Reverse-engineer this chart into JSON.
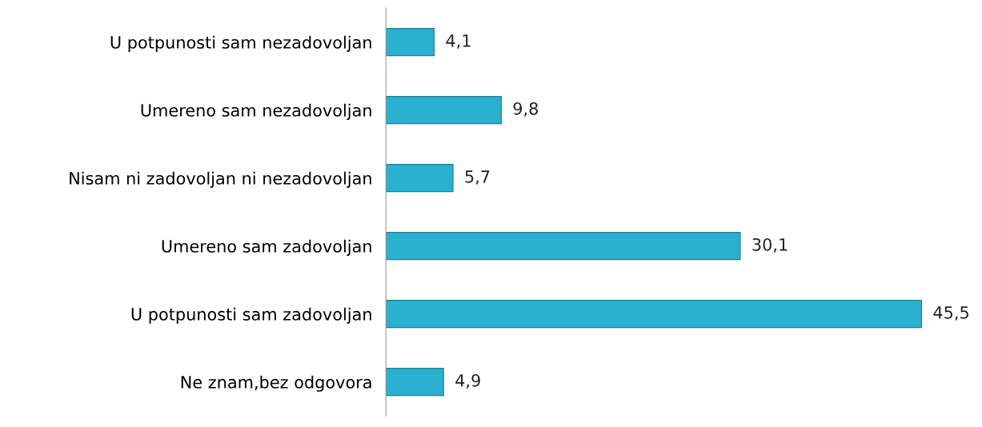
{
  "chart_data": {
    "type": "bar",
    "orientation": "horizontal",
    "categories": [
      "U potpunosti sam nezadovoljan",
      "Umereno sam nezadovoljan",
      "Nisam ni zadovoljan ni nezadovoljan",
      "Umereno sam zadovoljan",
      "U potpunosti sam zadovoljan",
      "Ne znam,bez odgovora"
    ],
    "values": [
      4.1,
      9.8,
      5.7,
      30.1,
      45.5,
      4.9
    ],
    "value_labels": [
      "4,1",
      "9,8",
      "5,7",
      "30,1",
      "45,5",
      "4,9"
    ],
    "color": "#29b1cf",
    "tick_labels": "y",
    "grid": false,
    "legend": false
  }
}
